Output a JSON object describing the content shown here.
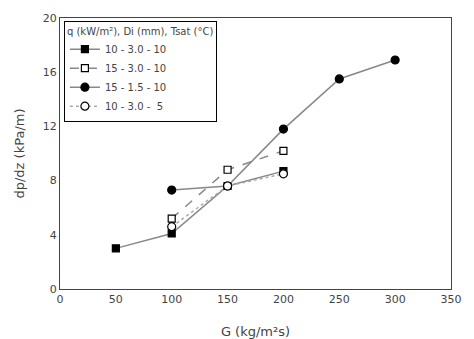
{
  "chart_data": {
    "type": "line",
    "x_label": "G (kg/m²s)",
    "y_label": "dp/dz (kPa/m)",
    "legend_title": "q (kW/m²), Di (mm), Tsat (°C)",
    "legend": "upper left",
    "grid": false,
    "xlim": [
      0,
      350
    ],
    "ylim": [
      0,
      20
    ],
    "xticks": [
      0,
      50,
      100,
      150,
      200,
      250,
      300,
      350
    ],
    "yticks": [
      0,
      4,
      8,
      12,
      16,
      20
    ],
    "series": [
      {
        "name": "10 - 3.0 - 10",
        "x": [
          50,
          100,
          150,
          200
        ],
        "values": [
          3.0,
          4.1,
          7.6,
          8.7
        ],
        "color": "#888888",
        "line_style": "solid",
        "marker": "square"
      },
      {
        "name": "15 - 3.0 - 10",
        "x": [
          100,
          150,
          200
        ],
        "values": [
          5.2,
          8.8,
          10.2
        ],
        "color": "#888888",
        "line_style": "dashed",
        "marker": "square-open"
      },
      {
        "name": "15 - 1.5 - 10",
        "x": [
          100,
          150,
          200,
          250,
          300
        ],
        "values": [
          7.3,
          7.6,
          11.8,
          15.5,
          16.9
        ],
        "color": "#888888",
        "line_style": "solid",
        "marker": "circle"
      },
      {
        "name": "10 - 3.0 -  5",
        "x": [
          100,
          150,
          200
        ],
        "values": [
          4.6,
          7.6,
          8.5
        ],
        "color": "#aaaaaa",
        "line_style": "dotted",
        "marker": "circle-open"
      }
    ]
  }
}
